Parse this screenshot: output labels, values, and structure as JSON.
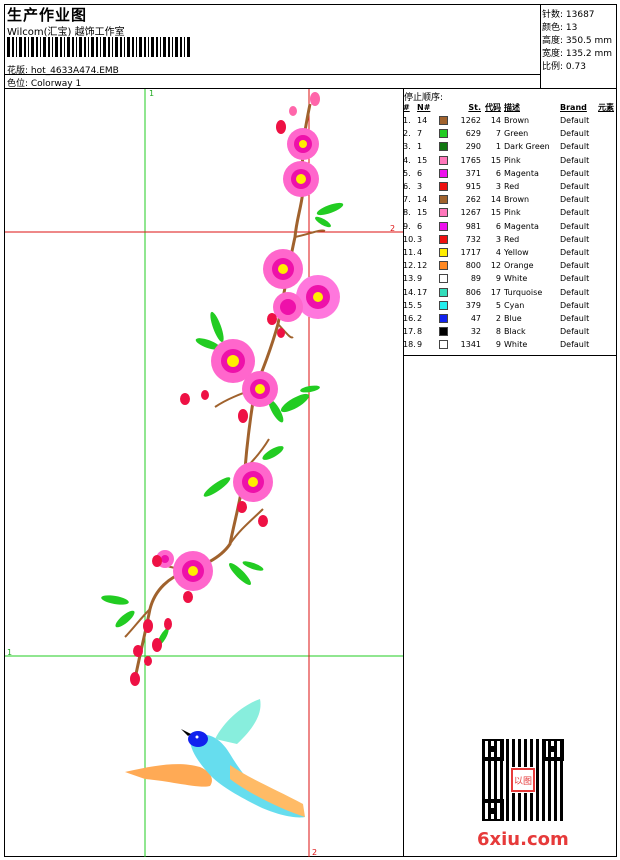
{
  "header": {
    "title": "生产作业图",
    "subtitle": "Wilcom(汇宝) 越饰工作室",
    "design_label": "花版: hot_4633A474.EMB",
    "colorway_label": "色位: Colorway 1"
  },
  "stats": [
    {
      "label": "针数: 13687"
    },
    {
      "label": "颜色: 13"
    },
    {
      "label": "高度: 350.5 mm"
    },
    {
      "label": "宽度: 135.2 mm"
    },
    {
      "label": "比例: 0.73"
    }
  ],
  "stop_sequence": {
    "title": "停止顺序:",
    "headers": [
      "#",
      "N#",
      "St.",
      "代码",
      "描述",
      "Brand",
      "元素"
    ],
    "rows": [
      {
        "idx": "1.",
        "n": "14",
        "color": "#a0622d",
        "st": "1262",
        "code": "14",
        "desc": "Brown",
        "brand": "Default"
      },
      {
        "idx": "2.",
        "n": "7",
        "color": "#22cc22",
        "st": "629",
        "code": "7",
        "desc": "Green",
        "brand": "Default"
      },
      {
        "idx": "3.",
        "n": "1",
        "color": "#117711",
        "st": "290",
        "code": "1",
        "desc": "Dark Green",
        "brand": "Default"
      },
      {
        "idx": "4.",
        "n": "15",
        "color": "#ff77bb",
        "st": "1765",
        "code": "15",
        "desc": "Pink",
        "brand": "Default"
      },
      {
        "idx": "5.",
        "n": "6",
        "color": "#ee11ee",
        "st": "371",
        "code": "6",
        "desc": "Magenta",
        "brand": "Default"
      },
      {
        "idx": "6.",
        "n": "3",
        "color": "#ee1111",
        "st": "915",
        "code": "3",
        "desc": "Red",
        "brand": "Default"
      },
      {
        "idx": "7.",
        "n": "14",
        "color": "#a0622d",
        "st": "262",
        "code": "14",
        "desc": "Brown",
        "brand": "Default"
      },
      {
        "idx": "8.",
        "n": "15",
        "color": "#ff77bb",
        "st": "1267",
        "code": "15",
        "desc": "Pink",
        "brand": "Default"
      },
      {
        "idx": "9.",
        "n": "6",
        "color": "#ee11ee",
        "st": "981",
        "code": "6",
        "desc": "Magenta",
        "brand": "Default"
      },
      {
        "idx": "10.",
        "n": "3",
        "color": "#ee1111",
        "st": "732",
        "code": "3",
        "desc": "Red",
        "brand": "Default"
      },
      {
        "idx": "11.",
        "n": "4",
        "color": "#ffee00",
        "st": "1717",
        "code": "4",
        "desc": "Yellow",
        "brand": "Default"
      },
      {
        "idx": "12.",
        "n": "12",
        "color": "#ff8822",
        "st": "800",
        "code": "12",
        "desc": "Orange",
        "brand": "Default"
      },
      {
        "idx": "13.",
        "n": "9",
        "color": "#ffffff",
        "st": "89",
        "code": "9",
        "desc": "White",
        "brand": "Default"
      },
      {
        "idx": "14.",
        "n": "17",
        "color": "#33ddbb",
        "st": "806",
        "code": "17",
        "desc": "Turquoise",
        "brand": "Default"
      },
      {
        "idx": "15.",
        "n": "5",
        "color": "#22eeee",
        "st": "379",
        "code": "5",
        "desc": "Cyan",
        "brand": "Default"
      },
      {
        "idx": "16.",
        "n": "2",
        "color": "#1122ee",
        "st": "47",
        "code": "2",
        "desc": "Blue",
        "brand": "Default"
      },
      {
        "idx": "17.",
        "n": "8",
        "color": "#000000",
        "st": "32",
        "code": "8",
        "desc": "Black",
        "brand": "Default"
      },
      {
        "idx": "18.",
        "n": "9",
        "color": "#ffffff",
        "st": "1341",
        "code": "9",
        "desc": "White",
        "brand": "Default"
      }
    ]
  },
  "guides": {
    "green_label_top": "1",
    "red_label_right": "2",
    "green_label_left": "1",
    "red_label_bottom": "2"
  },
  "watermark": {
    "seal_text": "以图",
    "logo_text": "6xiu.com"
  },
  "colors": {
    "guide_green": "#22cc22",
    "guide_red": "#dd1111",
    "logo_red": "#e63a3a"
  }
}
